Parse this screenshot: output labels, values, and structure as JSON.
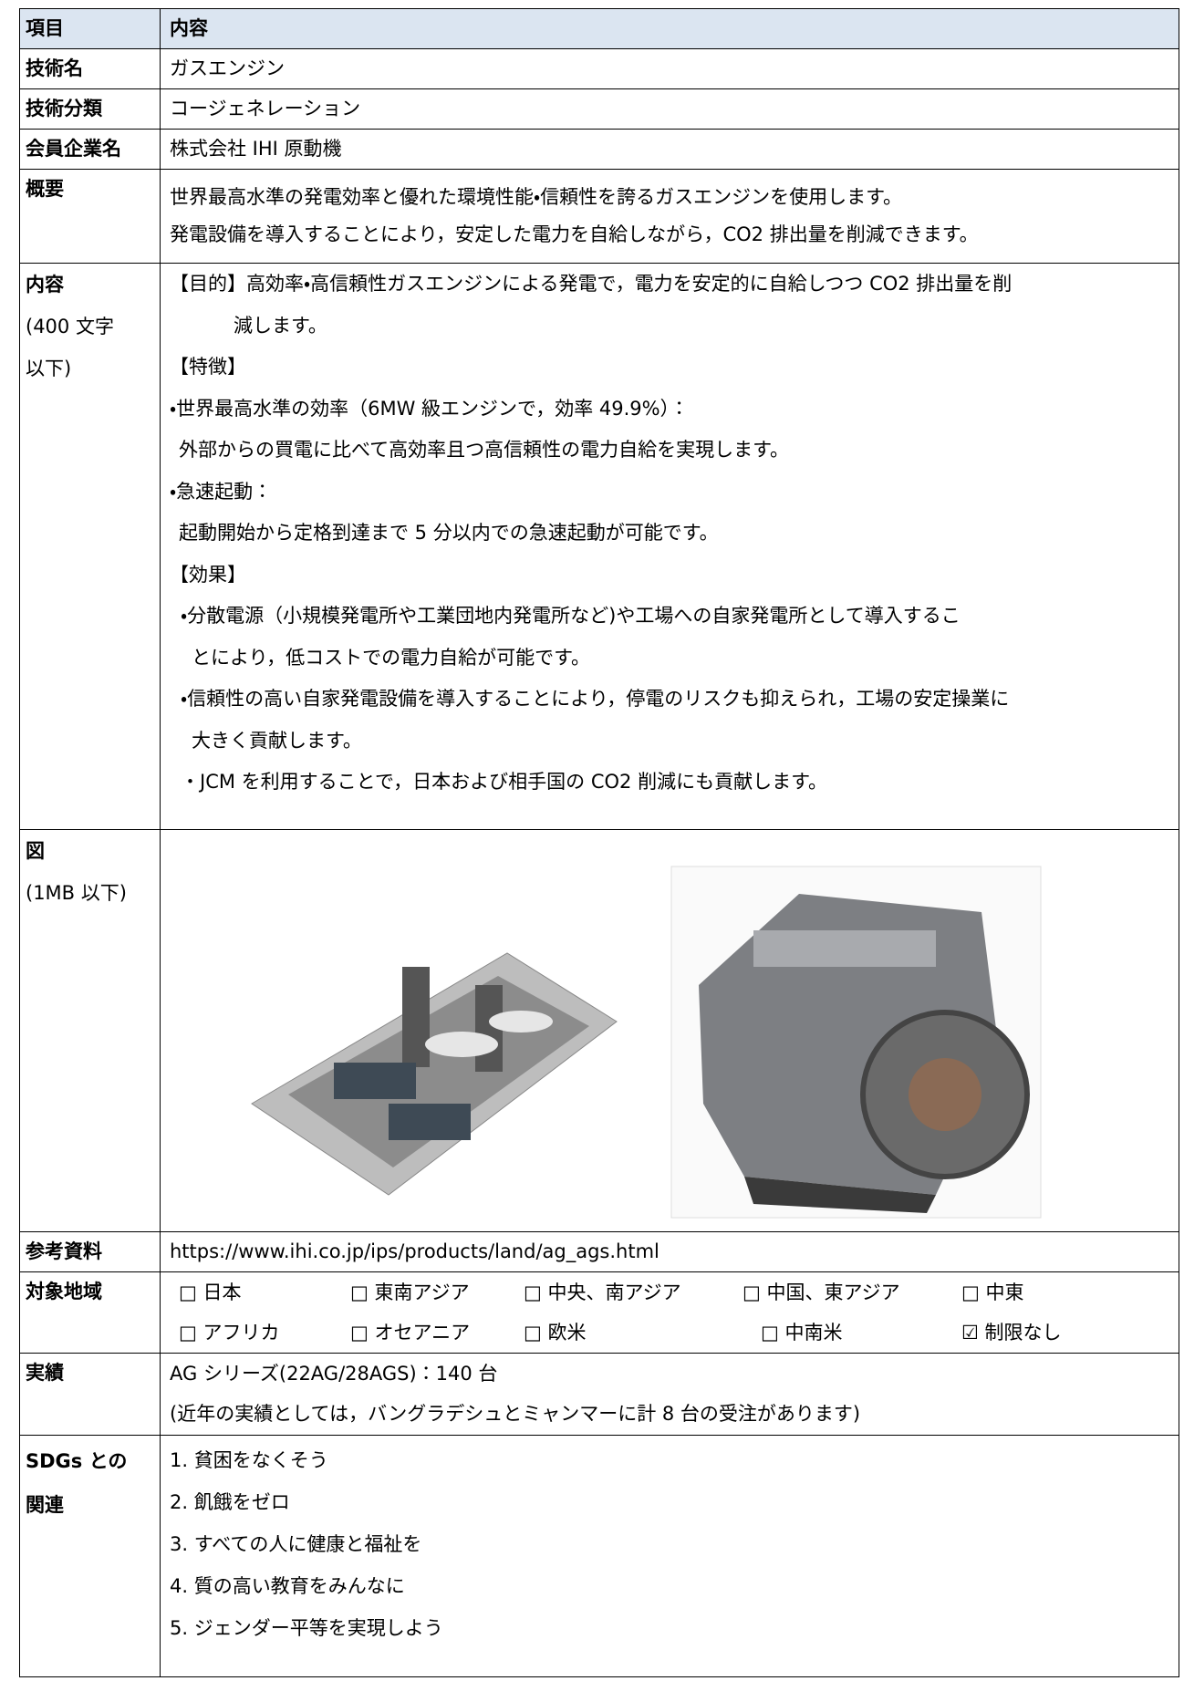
{
  "table": {
    "header": {
      "item": "項目",
      "content": "内容"
    },
    "rows": [
      {
        "label": [
          "技術名"
        ],
        "content": [
          "ガスエンジン"
        ]
      },
      {
        "label": [
          "技術分類"
        ],
        "content": [
          "コージェネレーション"
        ]
      },
      {
        "label": [
          "会員企業名"
        ],
        "content": [
          "株式会社 IHI 原動機"
        ]
      },
      {
        "label": [
          "概要"
        ],
        "content": [
          "世界最高水準の発電効率と優れた環境性能・信頼性を誇るガスエンジンを使用します。",
          "発電設備を導入することにより，安定した電力を自給しながら，CO2 排出量を削減できます。"
        ]
      },
      {
        "label": [
          "内容",
          "(400 文字",
          "以下)"
        ],
        "content": [
          "【目的】高効率・高信頼性ガスエンジンによる発電で，電力を安定的に自給しつつ CO2 排出量を削",
          "減します。",
          "【特徴】",
          "・世界最高水準の効率（6MW 級エンジンで，効率 49.9%）：",
          "外部からの買電に比べて高効率且つ高信頼性の電力自給を実現します。",
          "・急速起動：",
          "起動開始から定格到達まで 5 分以内での急速起動が可能です。",
          "【効果】",
          "・分散電源（小規模発電所や工業団地内発電所など)や工場への自家発電所として導入するこ",
          "とにより，低コストでの電力自給が可能です。",
          "・信頼性の高い自家発電設備を導入することにより，停電のリスクも抑えられ，工場の安定操業に",
          "大きく貢献します。",
          "・JCM を利用することで，日本および相手国の CO2 削減にも貢献します。"
        ]
      },
      {
        "label": [
          "図",
          "(1MB 以下)"
        ]
      },
      {
        "label": [
          "参考資料"
        ],
        "content": [
          "https://www.ihi.co.jp/ips/products/land/ag_ags.html"
        ]
      },
      {
        "label": [
          "対象地域"
        ],
        "content": [
          [
            "□ 日本",
            "□ 東南アジア",
            "□ 中央、南アジア",
            "□ 中国、東アジア",
            "□ 中東"
          ],
          [
            "□ アフリカ",
            "□ オセアニア",
            "□ 欧米",
            "□ 中南米",
            "☑ 制限なし"
          ]
        ]
      },
      {
        "label": [
          "実績"
        ],
        "content": [
          "AG シリーズ(22AG/28AGS)：140 台",
          "(近年の実績としては，バングラデシュとミャンマーに計 8 台の受注があります)"
        ]
      },
      {
        "label": [
          "SDGs との",
          "関連"
        ],
        "content": [
          "1. 貧困をなくそう",
          "2. 飢餓をゼロ",
          "3. すべての人に健康と福祉を",
          "4. 質の高い教育をみんなに",
          "5. ジェンダー平等を実現しよう"
        ]
      }
    ]
  }
}
